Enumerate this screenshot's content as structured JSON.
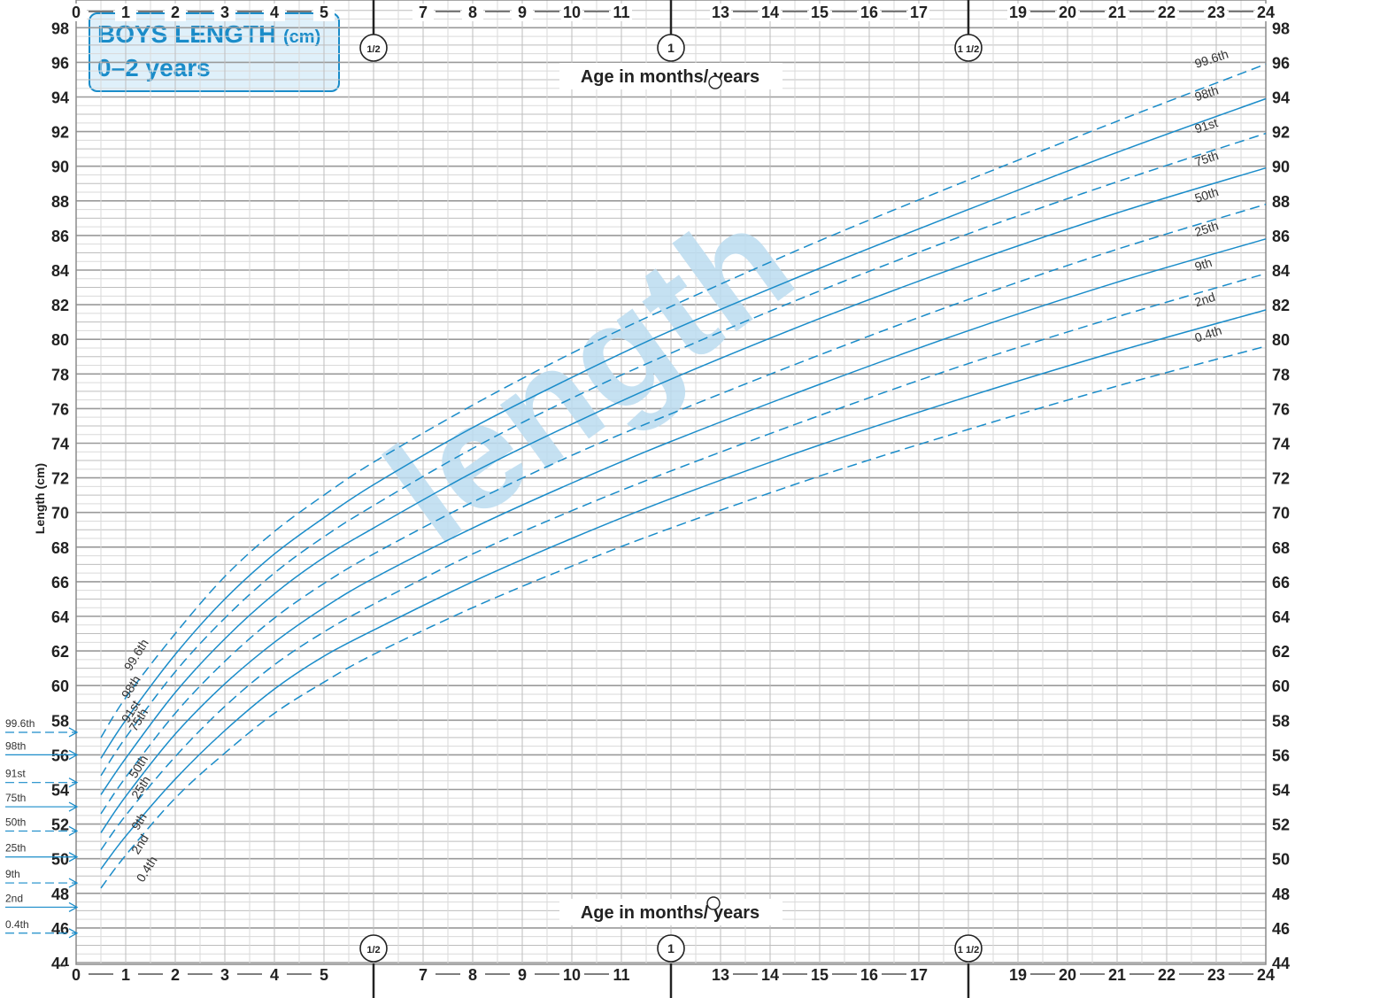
{
  "chart_data": {
    "type": "line",
    "title": "BOYS LENGTH",
    "title_unit": "(cm)",
    "subtitle": "0–2 years",
    "watermark": "length",
    "xlabel": "Age in months/ years",
    "ylabel": "Length (cm)",
    "xlim": [
      0,
      24
    ],
    "ylim": [
      44,
      99
    ],
    "x_ticks": [
      "0",
      "1",
      "2",
      "3",
      "4",
      "5",
      "7",
      "8",
      "9",
      "10",
      "11",
      "13",
      "14",
      "15",
      "16",
      "17",
      "19",
      "20",
      "21",
      "22",
      "23",
      "24"
    ],
    "x_tick_values": [
      0,
      1,
      2,
      3,
      4,
      5,
      7,
      8,
      9,
      10,
      11,
      13,
      14,
      15,
      16,
      17,
      19,
      20,
      21,
      22,
      23,
      24
    ],
    "y_ticks": [
      "44",
      "46",
      "48",
      "50",
      "52",
      "54",
      "56",
      "58",
      "60",
      "62",
      "64",
      "66",
      "68",
      "70",
      "72",
      "74",
      "76",
      "78",
      "80",
      "82",
      "84",
      "86",
      "88",
      "90",
      "92",
      "94",
      "96",
      "98"
    ],
    "y_tick_values": [
      44,
      46,
      48,
      50,
      52,
      54,
      56,
      58,
      60,
      62,
      64,
      66,
      68,
      70,
      72,
      74,
      76,
      78,
      80,
      82,
      84,
      86,
      88,
      90,
      92,
      94,
      96,
      98
    ],
    "year_markers": [
      {
        "label": "1/2",
        "value": 6
      },
      {
        "label": "1",
        "value": 12
      },
      {
        "label": "1 1/2",
        "value": 18
      }
    ],
    "grid": true,
    "line_color": "#1a8cc9",
    "x": [
      0.5,
      1,
      2,
      3,
      4,
      5,
      6,
      8,
      10,
      12,
      15,
      18,
      21,
      24
    ],
    "series": [
      {
        "name": "99.6th",
        "dashed": true,
        "values": [
          57.0,
          59.3,
          63.0,
          66.3,
          68.9,
          71.0,
          72.9,
          76.2,
          79.2,
          81.9,
          85.7,
          89.2,
          92.6,
          95.9
        ]
      },
      {
        "name": "98th",
        "dashed": false,
        "values": [
          55.8,
          58.0,
          61.8,
          65.0,
          67.6,
          69.7,
          71.6,
          74.9,
          77.8,
          80.5,
          84.1,
          87.5,
          90.8,
          93.9
        ]
      },
      {
        "name": "91st",
        "dashed": true,
        "values": [
          54.8,
          57.0,
          60.8,
          63.9,
          66.5,
          68.6,
          70.4,
          73.7,
          76.6,
          79.2,
          82.8,
          86.1,
          89.1,
          91.9
        ]
      },
      {
        "name": "75th",
        "dashed": false,
        "values": [
          53.7,
          55.8,
          59.6,
          62.7,
          65.3,
          67.4,
          69.1,
          72.3,
          75.1,
          77.7,
          81.2,
          84.4,
          87.3,
          89.9
        ]
      },
      {
        "name": "50th",
        "dashed": true,
        "values": [
          52.6,
          54.7,
          58.4,
          61.4,
          63.9,
          65.9,
          67.6,
          70.6,
          73.3,
          75.7,
          79.1,
          82.3,
          85.2,
          87.8
        ]
      },
      {
        "name": "25th",
        "dashed": false,
        "values": [
          51.5,
          53.6,
          57.2,
          60.1,
          62.5,
          64.5,
          66.2,
          69.1,
          71.7,
          74.1,
          77.4,
          80.5,
          83.3,
          85.8
        ]
      },
      {
        "name": "9th",
        "dashed": true,
        "values": [
          50.5,
          52.5,
          55.9,
          58.8,
          61.2,
          63.1,
          64.7,
          67.6,
          70.1,
          72.4,
          75.6,
          78.6,
          81.3,
          83.8
        ]
      },
      {
        "name": "2nd",
        "dashed": false,
        "values": [
          49.4,
          51.3,
          54.6,
          57.4,
          59.8,
          61.7,
          63.2,
          66.0,
          68.5,
          70.8,
          73.9,
          76.7,
          79.3,
          81.7
        ]
      },
      {
        "name": "0.4th",
        "dashed": true,
        "values": [
          48.3,
          50.2,
          53.5,
          56.1,
          58.4,
          60.2,
          61.8,
          64.5,
          66.9,
          69.1,
          72.1,
          74.8,
          77.3,
          79.6
        ]
      }
    ],
    "birth_centiles": [
      {
        "name": "99.6th",
        "value": 57.3
      },
      {
        "name": "98th",
        "value": 56.0
      },
      {
        "name": "91st",
        "value": 54.4
      },
      {
        "name": "75th",
        "value": 53.0
      },
      {
        "name": "50th",
        "value": 51.6
      },
      {
        "name": "25th",
        "value": 50.1
      },
      {
        "name": "9th",
        "value": 48.6
      },
      {
        "name": "2nd",
        "value": 47.2
      },
      {
        "name": "0.4th",
        "value": 45.7
      }
    ]
  }
}
